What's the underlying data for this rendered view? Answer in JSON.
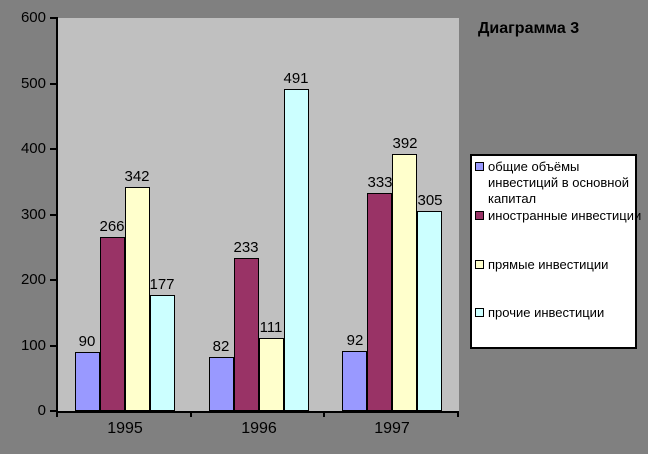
{
  "title": "Диаграмма 3",
  "colors": {
    "outer_bg": "#808080",
    "plot_bg": "#C0C0C0",
    "axis": "#000000",
    "legend_bg": "#FFFFFF",
    "text": "#000000"
  },
  "chart_data": {
    "type": "bar",
    "title": "Диаграмма 3",
    "categories": [
      "1995",
      "1996",
      "1997"
    ],
    "series": [
      {
        "name": "общие объёмы инвестиций в основной капитал",
        "legend_label": "общие объёмы\nинвестиций в основной\nкапитал",
        "color": "#9999FF",
        "values": [
          90,
          82,
          92
        ]
      },
      {
        "name": "иностранные инвестиции",
        "legend_label": "иностранные инвестиции",
        "color": "#993366",
        "values": [
          266,
          233,
          333
        ]
      },
      {
        "name": "прямые инвестиции",
        "legend_label": "прямые инвестиции",
        "color": "#FFFFCC",
        "values": [
          342,
          111,
          392
        ]
      },
      {
        "name": "прочие инвестиции",
        "legend_label": "прочие инвестиции",
        "color": "#CCFFFF",
        "values": [
          177,
          491,
          305
        ]
      }
    ],
    "ylim": [
      0,
      600
    ],
    "yticks": [
      0,
      100,
      200,
      300,
      400,
      500,
      600
    ],
    "grid": false,
    "legend_position": "right",
    "data_labels": true
  }
}
